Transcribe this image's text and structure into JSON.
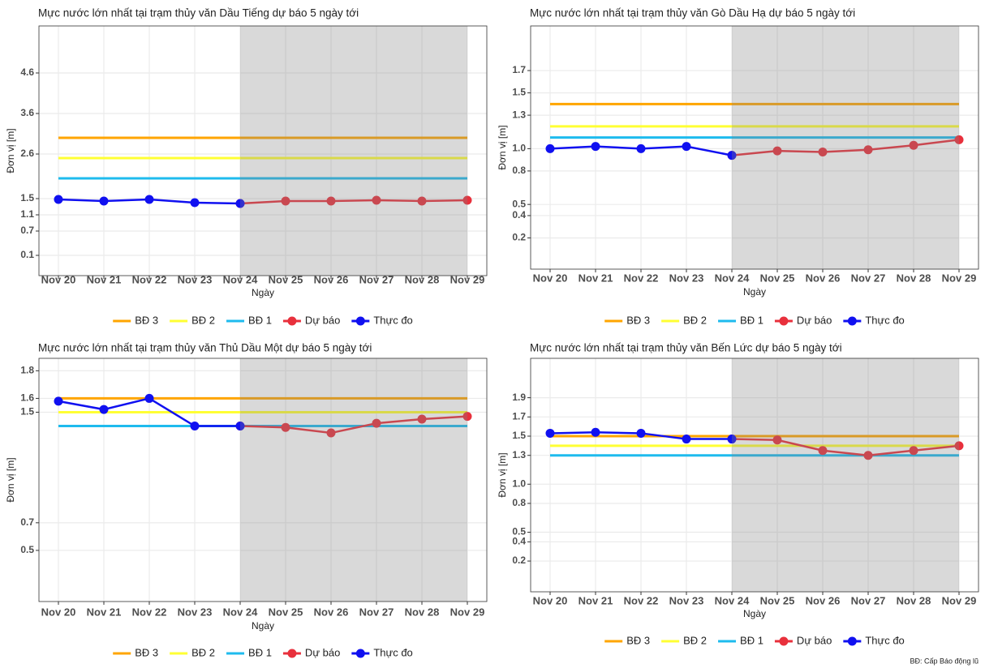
{
  "chart_data": [
    {
      "type": "line",
      "title": "Mực nước lớn nhất tại trạm thủy văn Dầu Tiếng dự báo 5 ngày tới",
      "xlabel": "Ngày",
      "ylabel": "Đơn vị [m]",
      "categories": [
        "Nov 20",
        "Nov 21",
        "Nov 22",
        "Nov 23",
        "Nov 24",
        "Nov 25",
        "Nov 26",
        "Nov 27",
        "Nov 28",
        "Nov 29"
      ],
      "ylim": [
        -0.4,
        5.76
      ],
      "yticks": [
        0.1,
        0.7,
        1.1,
        1.5,
        2.6,
        3.6,
        4.6
      ],
      "grid": true,
      "series": [
        {
          "name": "BĐ 3",
          "color": "#FFA500",
          "markers": false,
          "values": [
            3.0,
            3.0,
            3.0,
            3.0,
            3.0,
            3.0,
            3.0,
            3.0,
            3.0,
            3.0
          ]
        },
        {
          "name": "BĐ 2",
          "color": "#FFFF33",
          "markers": false,
          "values": [
            2.5,
            2.5,
            2.5,
            2.5,
            2.5,
            2.5,
            2.5,
            2.5,
            2.5,
            2.5
          ]
        },
        {
          "name": "BĐ 1",
          "color": "#1EBBEE",
          "markers": false,
          "values": [
            2.0,
            2.0,
            2.0,
            2.0,
            2.0,
            2.0,
            2.0,
            2.0,
            2.0,
            2.0
          ]
        },
        {
          "name": "Dự báo",
          "color": "#E8303C",
          "markers": true,
          "values": [
            null,
            null,
            null,
            null,
            1.38,
            1.44,
            1.44,
            1.46,
            1.44,
            1.46
          ]
        },
        {
          "name": "Thực đo",
          "color": "#1010F0",
          "markers": true,
          "values": [
            1.48,
            1.44,
            1.48,
            1.4,
            1.38,
            null,
            null,
            null,
            null,
            null
          ]
        }
      ]
    },
    {
      "type": "line",
      "title": "Mực nước lớn nhất tại trạm thủy văn Gò Dầu Hạ dự báo 5 ngày tới",
      "xlabel": "Ngày",
      "ylabel": "Đơn vị [m]",
      "categories": [
        "Nov 20",
        "Nov 21",
        "Nov 22",
        "Nov 23",
        "Nov 24",
        "Nov 25",
        "Nov 26",
        "Nov 27",
        "Nov 28",
        "Nov 29"
      ],
      "ylim": [
        -0.08,
        2.1
      ],
      "yticks": [
        0.2,
        0.4,
        0.5,
        0.8,
        {
          "value": 1,
          "label": "1.0"
        },
        1.3,
        1.5,
        1.7
      ],
      "grid": true,
      "series": [
        {
          "name": "BĐ 3",
          "color": "#FFA500",
          "markers": false,
          "values": [
            1.4,
            1.4,
            1.4,
            1.4,
            1.4,
            1.4,
            1.4,
            1.4,
            1.4,
            1.4
          ]
        },
        {
          "name": "BĐ 2",
          "color": "#FFFF33",
          "markers": false,
          "values": [
            1.2,
            1.2,
            1.2,
            1.2,
            1.2,
            1.2,
            1.2,
            1.2,
            1.2,
            1.2
          ]
        },
        {
          "name": "BĐ 1",
          "color": "#1EBBEE",
          "markers": false,
          "values": [
            1.1,
            1.1,
            1.1,
            1.1,
            1.1,
            1.1,
            1.1,
            1.1,
            1.1,
            1.1
          ]
        },
        {
          "name": "Dự báo",
          "color": "#E8303C",
          "markers": true,
          "values": [
            null,
            null,
            null,
            null,
            0.94,
            0.98,
            0.97,
            0.99,
            1.03,
            1.08
          ]
        },
        {
          "name": "Thực đo",
          "color": "#1010F0",
          "markers": true,
          "values": [
            1.0,
            1.02,
            1.0,
            1.02,
            0.94,
            null,
            null,
            null,
            null,
            null
          ]
        }
      ]
    },
    {
      "type": "line",
      "title": "Mực nước lớn nhất tại trạm thủy văn Thủ Dầu Một dự báo 5 ngày tới",
      "xlabel": "Ngày",
      "ylabel": "Đơn vị [m]",
      "categories": [
        "Nov 20",
        "Nov 21",
        "Nov 22",
        "Nov 23",
        "Nov 24",
        "Nov 25",
        "Nov 26",
        "Nov 27",
        "Nov 28",
        "Nov 29"
      ],
      "ylim": [
        0.13,
        1.89
      ],
      "yticks": [
        0.5,
        0.7,
        1.5,
        1.6,
        1.8
      ],
      "grid": true,
      "series": [
        {
          "name": "BĐ 3",
          "color": "#FFA500",
          "markers": false,
          "values": [
            1.6,
            1.6,
            1.6,
            1.6,
            1.6,
            1.6,
            1.6,
            1.6,
            1.6,
            1.6
          ]
        },
        {
          "name": "BĐ 2",
          "color": "#FFFF33",
          "markers": false,
          "values": [
            1.5,
            1.5,
            1.5,
            1.5,
            1.5,
            1.5,
            1.5,
            1.5,
            1.5,
            1.5
          ]
        },
        {
          "name": "BĐ 1",
          "color": "#1EBBEE",
          "markers": false,
          "values": [
            1.4,
            1.4,
            1.4,
            1.4,
            1.4,
            1.4,
            1.4,
            1.4,
            1.4,
            1.4
          ]
        },
        {
          "name": "Dự báo",
          "color": "#E8303C",
          "markers": true,
          "values": [
            null,
            null,
            null,
            null,
            1.4,
            1.39,
            1.35,
            1.42,
            1.45,
            1.47
          ]
        },
        {
          "name": "Thực đo",
          "color": "#1010F0",
          "markers": true,
          "values": [
            1.58,
            1.52,
            1.6,
            1.4,
            1.4,
            null,
            null,
            null,
            null,
            null
          ]
        }
      ]
    },
    {
      "type": "line",
      "title": "Mực nước lớn nhất tại trạm thủy văn Bến Lức dự báo 5 ngày tới",
      "xlabel": "Ngày",
      "ylabel": "Đơn vị [m]",
      "categories": [
        "Nov 20",
        "Nov 21",
        "Nov 22",
        "Nov 23",
        "Nov 24",
        "Nov 25",
        "Nov 26",
        "Nov 27",
        "Nov 28",
        "Nov 29"
      ],
      "ylim": [
        -0.12,
        2.31
      ],
      "yticks": [
        0.2,
        0.4,
        0.5,
        0.8,
        {
          "value": 1,
          "label": "1.0"
        },
        1.3,
        1.5,
        1.7,
        1.9
      ],
      "grid": true,
      "series": [
        {
          "name": "BĐ 3",
          "color": "#FFA500",
          "markers": false,
          "values": [
            1.5,
            1.5,
            1.5,
            1.5,
            1.5,
            1.5,
            1.5,
            1.5,
            1.5,
            1.5
          ]
        },
        {
          "name": "BĐ 2",
          "color": "#FFFF33",
          "markers": false,
          "values": [
            1.4,
            1.4,
            1.4,
            1.4,
            1.4,
            1.4,
            1.4,
            1.4,
            1.4,
            1.4
          ]
        },
        {
          "name": "BĐ 1",
          "color": "#1EBBEE",
          "markers": false,
          "values": [
            1.3,
            1.3,
            1.3,
            1.3,
            1.3,
            1.3,
            1.3,
            1.3,
            1.3,
            1.3
          ]
        },
        {
          "name": "Dự báo",
          "color": "#E8303C",
          "markers": true,
          "values": [
            null,
            null,
            null,
            null,
            1.47,
            1.46,
            1.35,
            1.3,
            1.35,
            1.4
          ]
        },
        {
          "name": "Thực đo",
          "color": "#1010F0",
          "markers": true,
          "values": [
            1.53,
            1.54,
            1.53,
            1.47,
            1.47,
            null,
            null,
            null,
            null,
            null
          ]
        }
      ]
    }
  ],
  "footnote": "BĐ: Cấp Báo động lũ"
}
